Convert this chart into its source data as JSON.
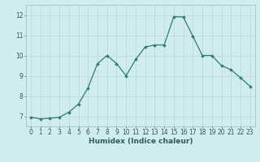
{
  "x": [
    0,
    1,
    2,
    3,
    4,
    5,
    6,
    7,
    8,
    9,
    10,
    11,
    12,
    13,
    14,
    15,
    16,
    17,
    18,
    19,
    20,
    21,
    22,
    23
  ],
  "y": [
    6.95,
    6.87,
    6.9,
    6.95,
    7.2,
    7.6,
    8.4,
    9.6,
    10.0,
    9.6,
    9.0,
    9.8,
    10.42,
    10.52,
    10.52,
    11.92,
    11.9,
    10.95,
    10.0,
    10.0,
    9.5,
    9.3,
    8.9,
    8.48
  ],
  "xlabel": "Humidex (Indice chaleur)",
  "ylim": [
    6.5,
    12.5
  ],
  "xlim": [
    -0.5,
    23.5
  ],
  "yticks": [
    7,
    8,
    9,
    10,
    11,
    12
  ],
  "xticks": [
    0,
    1,
    2,
    3,
    4,
    5,
    6,
    7,
    8,
    9,
    10,
    11,
    12,
    13,
    14,
    15,
    16,
    17,
    18,
    19,
    20,
    21,
    22,
    23
  ],
  "line_color": "#2e7d6e",
  "marker": "D",
  "marker_size": 1.8,
  "bg_color": "#d0ecee",
  "grid_color": "#c0d8da",
  "tick_fontsize": 5.5,
  "xlabel_fontsize": 6.5,
  "line_width": 0.9
}
